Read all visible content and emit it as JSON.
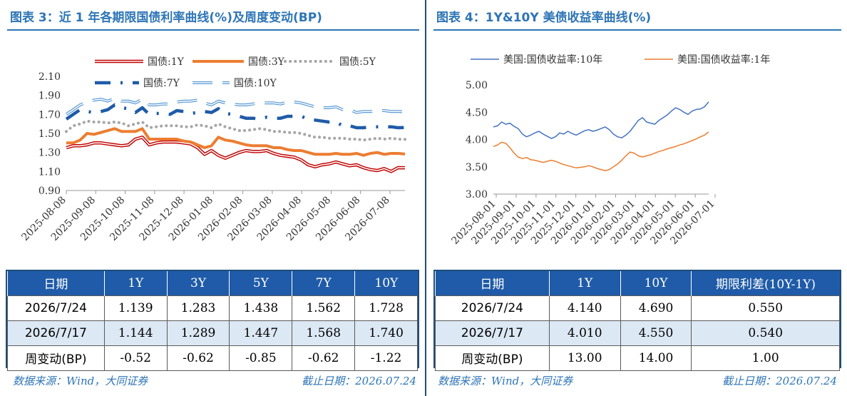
{
  "left": {
    "title": "图表 3：近 1 年各期限国债利率曲线(%)及周度变动(BP)",
    "source": "数据来源：Wind，大同证券",
    "date_note": "截止日期：2026.07.24",
    "table": {
      "headers": [
        "日期",
        "1Y",
        "3Y",
        "5Y",
        "7Y",
        "10Y"
      ],
      "rows": [
        [
          "2026/7/24",
          "1.139",
          "1.283",
          "1.438",
          "1.562",
          "1.728"
        ],
        [
          "2026/7/17",
          "1.144",
          "1.289",
          "1.447",
          "1.568",
          "1.740"
        ],
        [
          "周变动(BP)",
          "-0.52",
          "-0.62",
          "-0.85",
          "-0.62",
          "-1.22"
        ]
      ]
    }
  },
  "right": {
    "title": "图表 4：1Y&10Y 美债收益率曲线(%)",
    "source": "数据来源：Wind，大同证券",
    "date_note": "截止日期：2026.07.24",
    "table": {
      "headers": [
        "日期",
        "1Y",
        "10Y",
        "期限利差(10Y-1Y)"
      ],
      "rows": [
        [
          "2026/7/24",
          "4.140",
          "4.690",
          "0.550"
        ],
        [
          "2026/7/17",
          "4.010",
          "4.550",
          "0.540"
        ],
        [
          "周变动(BP)",
          "13.00",
          "14.00",
          "1.00"
        ]
      ]
    }
  },
  "chart_data": [
    {
      "type": "line",
      "ylim": [
        0.9,
        2.1
      ],
      "yticks": [
        "0.90",
        "1.10",
        "1.30",
        "1.50",
        "1.70",
        "1.90",
        "2.10"
      ],
      "x_tick_labels": [
        "2025-08-08",
        "2025-09-08",
        "2025-10-08",
        "2025-11-08",
        "2025-12-08",
        "2026-01-08",
        "2026-02-08",
        "2026-03-08",
        "2026-04-08",
        "2026-05-08",
        "2026-06-08",
        "2026-07-08"
      ],
      "grid": false,
      "legend_position": "top",
      "series": [
        {
          "name": "国债:1Y",
          "color": "#c00000",
          "style": "double",
          "values": [
            1.35,
            1.37,
            1.37,
            1.38,
            1.4,
            1.4,
            1.39,
            1.38,
            1.37,
            1.38,
            1.44,
            1.46,
            1.38,
            1.4,
            1.41,
            1.41,
            1.41,
            1.4,
            1.39,
            1.35,
            1.28,
            1.32,
            1.27,
            1.24,
            1.27,
            1.3,
            1.32,
            1.31,
            1.31,
            1.32,
            1.29,
            1.27,
            1.26,
            1.25,
            1.22,
            1.17,
            1.15,
            1.17,
            1.18,
            1.2,
            1.18,
            1.16,
            1.17,
            1.14,
            1.12,
            1.11,
            1.13,
            1.1,
            1.14,
            1.139
          ]
        },
        {
          "name": "国债:3Y",
          "color": "#ed7d31",
          "style": "thick",
          "values": [
            1.4,
            1.4,
            1.43,
            1.5,
            1.49,
            1.51,
            1.53,
            1.55,
            1.52,
            1.52,
            1.52,
            1.55,
            1.44,
            1.44,
            1.44,
            1.44,
            1.44,
            1.42,
            1.41,
            1.38,
            1.35,
            1.37,
            1.46,
            1.43,
            1.42,
            1.4,
            1.38,
            1.37,
            1.37,
            1.37,
            1.35,
            1.35,
            1.33,
            1.32,
            1.32,
            1.3,
            1.28,
            1.28,
            1.28,
            1.29,
            1.28,
            1.28,
            1.29,
            1.27,
            1.29,
            1.3,
            1.28,
            1.29,
            1.29,
            1.283
          ]
        },
        {
          "name": "国债:5Y",
          "color": "#a6a6a6",
          "style": "dotted",
          "values": [
            1.52,
            1.58,
            1.6,
            1.63,
            1.62,
            1.62,
            1.61,
            1.62,
            1.61,
            1.58,
            1.6,
            1.62,
            1.56,
            1.57,
            1.58,
            1.58,
            1.58,
            1.57,
            1.57,
            1.59,
            1.58,
            1.56,
            1.6,
            1.57,
            1.55,
            1.53,
            1.53,
            1.54,
            1.55,
            1.54,
            1.52,
            1.52,
            1.51,
            1.51,
            1.5,
            1.48,
            1.46,
            1.46,
            1.45,
            1.45,
            1.45,
            1.44,
            1.44,
            1.43,
            1.44,
            1.45,
            1.44,
            1.45,
            1.44,
            1.438
          ]
        },
        {
          "name": "国债:7Y",
          "color": "#1f5ba8",
          "style": "dashdot",
          "values": [
            1.65,
            1.7,
            1.75,
            1.73,
            1.72,
            1.73,
            1.75,
            1.8,
            1.77,
            1.76,
            1.72,
            1.77,
            1.7,
            1.71,
            1.71,
            1.7,
            1.74,
            1.73,
            1.71,
            1.72,
            1.73,
            1.72,
            1.76,
            1.71,
            1.7,
            1.68,
            1.66,
            1.66,
            1.65,
            1.67,
            1.66,
            1.66,
            1.68,
            1.68,
            1.68,
            1.65,
            1.64,
            1.63,
            1.62,
            1.62,
            1.58,
            1.58,
            1.56,
            1.56,
            1.57,
            1.57,
            1.57,
            1.57,
            1.56,
            1.562
          ]
        },
        {
          "name": "国债:10Y",
          "color": "#5b9bd5",
          "style": "doubledash",
          "values": [
            1.7,
            1.75,
            1.8,
            1.83,
            1.85,
            1.86,
            1.84,
            1.87,
            1.84,
            1.84,
            1.82,
            1.86,
            1.8,
            1.8,
            1.81,
            1.81,
            1.83,
            1.84,
            1.84,
            1.85,
            1.82,
            1.8,
            1.84,
            1.82,
            1.81,
            1.8,
            1.8,
            1.81,
            1.82,
            1.82,
            1.82,
            1.81,
            1.83,
            1.83,
            1.82,
            1.8,
            1.78,
            1.77,
            1.77,
            1.78,
            1.75,
            1.75,
            1.72,
            1.73,
            1.73,
            1.74,
            1.74,
            1.73,
            1.73,
            1.728
          ]
        }
      ]
    },
    {
      "type": "line",
      "ylim": [
        3.0,
        5.0
      ],
      "yticks": [
        "3.00",
        "3.50",
        "4.00",
        "4.50",
        "5.00"
      ],
      "x_tick_labels": [
        "2025-08-01",
        "2025-09-01",
        "2025-10-01",
        "2025-11-01",
        "2025-12-01",
        "2026-01-01",
        "2026-02-01",
        "2026-03-01",
        "2026-04-01",
        "2026-05-01",
        "2026-06-01",
        "2026-07-01"
      ],
      "grid": false,
      "legend_position": "top",
      "series": [
        {
          "name": "美国:国债收益率:10年",
          "color": "#4472c4",
          "values": [
            4.23,
            4.25,
            4.32,
            4.28,
            4.3,
            4.24,
            4.2,
            4.1,
            4.05,
            4.08,
            4.12,
            4.15,
            4.1,
            4.06,
            4.02,
            4.05,
            4.12,
            4.1,
            4.15,
            4.11,
            4.08,
            4.12,
            4.16,
            4.18,
            4.15,
            4.17,
            4.2,
            4.23,
            4.18,
            4.1,
            4.05,
            4.03,
            4.08,
            4.15,
            4.25,
            4.35,
            4.4,
            4.32,
            4.3,
            4.28,
            4.35,
            4.4,
            4.45,
            4.52,
            4.58,
            4.55,
            4.5,
            4.46,
            4.52,
            4.55,
            4.56,
            4.6,
            4.69
          ]
        },
        {
          "name": "美国:国债收益率:1年",
          "color": "#ed7d31",
          "values": [
            3.87,
            3.9,
            3.95,
            3.93,
            3.85,
            3.75,
            3.68,
            3.65,
            3.67,
            3.63,
            3.62,
            3.6,
            3.58,
            3.6,
            3.62,
            3.6,
            3.57,
            3.54,
            3.52,
            3.5,
            3.48,
            3.49,
            3.5,
            3.52,
            3.5,
            3.47,
            3.45,
            3.43,
            3.45,
            3.5,
            3.55,
            3.62,
            3.7,
            3.77,
            3.75,
            3.7,
            3.68,
            3.7,
            3.72,
            3.75,
            3.78,
            3.8,
            3.83,
            3.85,
            3.87,
            3.9,
            3.92,
            3.95,
            3.98,
            4.01,
            4.05,
            4.08,
            4.14
          ]
        }
      ]
    }
  ]
}
